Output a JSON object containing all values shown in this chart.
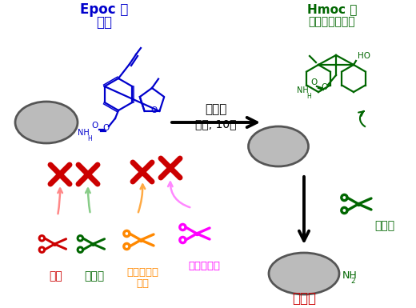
{
  "bg_color": "#ffffff",
  "epoc_label1": "Epoc 基",
  "epoc_label2": "安定",
  "epoc_color": "#0000cc",
  "hmoc_label1": "Hmoc 基",
  "hmoc_label2": "塩基性に不安定",
  "hmoc_color": "#006600",
  "arrow_label1": "金触媒",
  "arrow_label2": "室温, 10分",
  "scissors_red_label": "強酸",
  "scissors_green_label": "強塩基",
  "scissors_orange_label1": "パラジウム",
  "scissors_orange_label2": "触媒",
  "scissors_magenta_label": "ヒドラジン",
  "scissors_green2_label": "弱塩基",
  "deprotect_label": "脱保護",
  "deprotect_color": "#cc0000",
  "nh2_label": "NH",
  "nh2_sub": "2",
  "red": "#cc0000",
  "green": "#006600",
  "orange": "#ff8800",
  "magenta": "#ff00ff",
  "black": "#000000",
  "gray_face": "#bbbbbb",
  "gray_edge": "#555555"
}
